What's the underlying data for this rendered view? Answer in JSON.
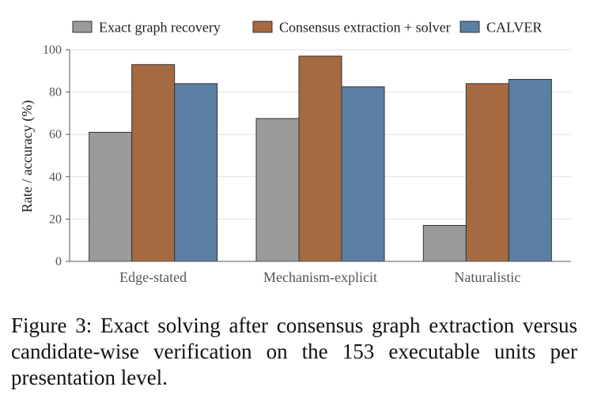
{
  "chart_data": {
    "type": "bar",
    "categories": [
      "Edge-stated",
      "Mechanism-explicit",
      "Naturalistic"
    ],
    "series": [
      {
        "name": "Exact graph recovery",
        "color": "#9b9b9b",
        "values": [
          61,
          67.5,
          17
        ]
      },
      {
        "name": "Consensus extraction + solver",
        "color": "#a66a42",
        "values": [
          93,
          97,
          84
        ]
      },
      {
        "name": "CALVER",
        "color": "#5a7fa3",
        "values": [
          84,
          82.5,
          86
        ]
      }
    ],
    "xlabel": "",
    "ylabel": "Rate / accuracy (%)",
    "ylim": [
      0,
      100
    ],
    "yticks": [
      0,
      20,
      40,
      60,
      80,
      100
    ],
    "grid": true,
    "legend": "top"
  },
  "caption": "Figure 3: Exact solving after consensus graph extraction versus candidate-wise verification on the 153 executable units per presentation level."
}
